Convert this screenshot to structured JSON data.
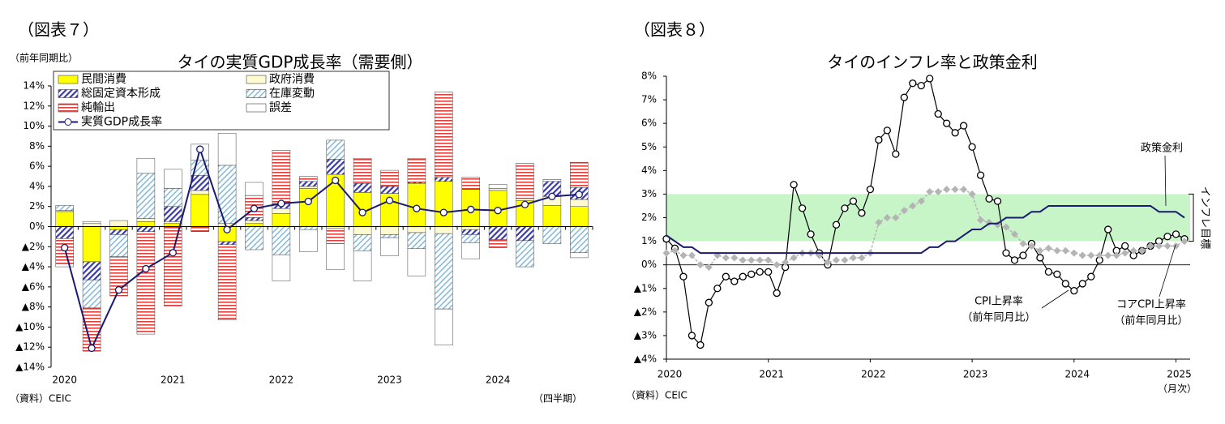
{
  "chart_data": [
    {
      "type": "bar",
      "stacked": true,
      "figure_label": "（図表７）",
      "title": "タイの実質GDP成長率（需要側）",
      "ylabel": "（前年同期比）",
      "xlabel": "（四半期）",
      "source": "（資料）CEIC",
      "categories": [
        "2020",
        null,
        null,
        null,
        "2021",
        null,
        null,
        null,
        "2022",
        null,
        null,
        null,
        "2023",
        null,
        null,
        null,
        "2024",
        null,
        null,
        null
      ],
      "series": [
        {
          "name": "民間消費",
          "color": "#ffff00",
          "pattern": "solid",
          "values": [
            1.5,
            -3.5,
            -0.3,
            0.5,
            0.3,
            3.2,
            -1.5,
            0.3,
            1.3,
            3.8,
            5.2,
            3.4,
            3.3,
            4.3,
            4.5,
            3.7,
            3.6,
            2.6,
            2.1,
            2.0
          ]
        },
        {
          "name": "政府消費",
          "color": "#fffbd0",
          "pattern": "solid",
          "values": [
            0.1,
            0.3,
            0.6,
            0.3,
            0.2,
            0.4,
            0.3,
            0.3,
            0.5,
            0.2,
            -0.2,
            -0.8,
            -0.8,
            -0.6,
            -0.7,
            -0.3,
            0.2,
            0.2,
            0.9,
            0.7
          ]
        },
        {
          "name": "総固定資本形成",
          "color": "#3a3aa8",
          "pattern": "diagonal",
          "values": [
            -1.2,
            -1.8,
            -0.5,
            -0.5,
            1.5,
            1.5,
            -0.3,
            0.3,
            0.5,
            0.5,
            1.5,
            0.9,
            0.7,
            0.1,
            0.4,
            -0.5,
            -1.3,
            -1.4,
            1.5,
            1.2
          ]
        },
        {
          "name": "在庫変動",
          "color": "#7ab4d8",
          "pattern": "fine-diagonal",
          "values": [
            0.5,
            -2.8,
            -2.2,
            4.5,
            1.8,
            1.5,
            5.8,
            -2.3,
            -2.8,
            -0.3,
            1.9,
            -1.6,
            -0.3,
            -1.6,
            -7.5,
            -0.8,
            0.0,
            -2.6,
            -1.7,
            -2.6
          ]
        },
        {
          "name": "純輸出",
          "color": "#e0403a",
          "pattern": "horizontal",
          "values": [
            -2.5,
            -4.3,
            -3.9,
            -10.2,
            -7.9,
            -0.5,
            -7.5,
            2.2,
            5.3,
            0.5,
            -1.5,
            2.5,
            1.6,
            2.4,
            8.5,
            1.2,
            -0.8,
            3.5,
            0.2,
            2.5
          ]
        },
        {
          "name": "誤差",
          "color": "#ffffff",
          "pattern": "solid",
          "values": [
            -0.3,
            0.2,
            0,
            1.5,
            1.9,
            1.6,
            3.2,
            1.3,
            -2.6,
            -2.2,
            -2.6,
            -3.0,
            -1.8,
            -2.7,
            -3.6,
            -1.6,
            0.4,
            0,
            0,
            -0.5
          ]
        },
        {
          "name": "実質GDP成長率",
          "color": "#1a1a6e",
          "type": "line",
          "marker": "circle",
          "values": [
            -2.1,
            -12.1,
            -6.3,
            -4.2,
            -2.6,
            7.7,
            -0.3,
            1.8,
            2.3,
            2.5,
            4.6,
            1.4,
            2.6,
            1.8,
            1.4,
            1.7,
            1.6,
            2.2,
            3.0,
            3.2
          ]
        }
      ],
      "ylim": [
        -14,
        14
      ],
      "yticks": [
        {
          "value": 14,
          "label": "14%"
        },
        {
          "value": 12,
          "label": "12%"
        },
        {
          "value": 10,
          "label": "10%"
        },
        {
          "value": 8,
          "label": "8%"
        },
        {
          "value": 6,
          "label": "6%"
        },
        {
          "value": 4,
          "label": "4%"
        },
        {
          "value": 2,
          "label": "2%"
        },
        {
          "value": 0,
          "label": "0%"
        },
        {
          "value": -2,
          "label": "▲2%"
        },
        {
          "value": -4,
          "label": "▲4%"
        },
        {
          "value": -6,
          "label": "▲6%"
        },
        {
          "value": -8,
          "label": "▲8%"
        },
        {
          "value": -10,
          "label": "▲10%"
        },
        {
          "value": -12,
          "label": "▲12%"
        },
        {
          "value": -14,
          "label": "▲14%"
        }
      ]
    },
    {
      "type": "line",
      "figure_label": "（図表８）",
      "title": "タイのインフレ率と政策金利",
      "x_unit": "（月次）",
      "source": "（資料）CEIC",
      "categories": [
        "2020",
        null,
        null,
        null,
        null,
        null,
        null,
        null,
        null,
        null,
        null,
        null,
        "2021",
        null,
        null,
        null,
        null,
        null,
        null,
        null,
        null,
        null,
        null,
        null,
        "2022",
        null,
        null,
        null,
        null,
        null,
        null,
        null,
        null,
        null,
        null,
        null,
        "2023",
        null,
        null,
        null,
        null,
        null,
        null,
        null,
        null,
        null,
        null,
        null,
        "2024",
        null,
        null,
        null,
        null,
        null,
        null,
        null,
        null,
        null,
        null,
        null,
        "2025",
        null
      ],
      "series": [
        {
          "name": "CPI上昇率",
          "color": "#000000",
          "marker": "circle",
          "values": [
            1.1,
            0.7,
            -0.5,
            -3.0,
            -3.4,
            -1.6,
            -1.0,
            -0.5,
            -0.7,
            -0.5,
            -0.4,
            -0.3,
            -0.3,
            -1.2,
            -0.1,
            3.4,
            2.4,
            1.3,
            0.5,
            0.0,
            1.7,
            2.4,
            2.7,
            2.2,
            3.2,
            5.3,
            5.7,
            4.7,
            7.1,
            7.7,
            7.6,
            7.9,
            6.4,
            6.0,
            5.6,
            5.9,
            5.0,
            3.8,
            2.8,
            2.7,
            0.5,
            0.2,
            0.4,
            0.9,
            0.3,
            -0.3,
            -0.4,
            -0.8,
            -1.1,
            -0.8,
            -0.5,
            0.2,
            1.5,
            0.6,
            0.8,
            0.4,
            0.6,
            0.8,
            1.0,
            1.2,
            1.3,
            1.1
          ]
        },
        {
          "name": "コアCPI上昇率",
          "color": "#b4b4b4",
          "marker": "diamond",
          "values": [
            0.5,
            0.6,
            0.4,
            0.4,
            0.0,
            -0.1,
            0.4,
            0.3,
            0.3,
            0.2,
            0.2,
            0.2,
            0.2,
            0.0,
            0.1,
            0.3,
            0.5,
            0.5,
            0.4,
            0.1,
            0.2,
            0.2,
            0.3,
            0.3,
            0.5,
            1.8,
            2.0,
            2.0,
            2.3,
            2.5,
            2.7,
            3.1,
            3.1,
            3.2,
            3.2,
            3.2,
            3.0,
            1.9,
            1.8,
            1.7,
            1.6,
            1.3,
            0.9,
            0.8,
            0.6,
            0.7,
            0.6,
            0.6,
            0.5,
            0.4,
            0.4,
            0.4,
            0.4,
            0.4,
            0.5,
            0.6,
            0.6,
            0.8,
            0.8,
            0.8,
            0.8,
            1.0
          ]
        },
        {
          "name": "政策金利",
          "color": "#1a1a6e",
          "marker": "none",
          "values": [
            1.25,
            1.0,
            0.75,
            0.75,
            0.5,
            0.5,
            0.5,
            0.5,
            0.5,
            0.5,
            0.5,
            0.5,
            0.5,
            0.5,
            0.5,
            0.5,
            0.5,
            0.5,
            0.5,
            0.5,
            0.5,
            0.5,
            0.5,
            0.5,
            0.5,
            0.5,
            0.5,
            0.5,
            0.5,
            0.5,
            0.5,
            0.75,
            0.75,
            1.0,
            1.0,
            1.25,
            1.5,
            1.5,
            1.75,
            1.75,
            2.0,
            2.0,
            2.0,
            2.25,
            2.25,
            2.5,
            2.5,
            2.5,
            2.5,
            2.5,
            2.5,
            2.5,
            2.5,
            2.5,
            2.5,
            2.5,
            2.5,
            2.5,
            2.25,
            2.25,
            2.25,
            2.0
          ]
        }
      ],
      "band": {
        "range": [
          1,
          3
        ],
        "color": "#c8f5c8",
        "label": "インフレ目標"
      },
      "annotations": [
        {
          "text": [
            "政策金利"
          ]
        },
        {
          "text": [
            "CPI上昇率",
            "（前年同月比）"
          ]
        },
        {
          "text": [
            "コアCPI上昇率",
            "（前年同月比）"
          ]
        }
      ],
      "ylim": [
        -4,
        8
      ],
      "yticks": [
        {
          "value": 8,
          "label": "8%"
        },
        {
          "value": 7,
          "label": "7%"
        },
        {
          "value": 6,
          "label": "6%"
        },
        {
          "value": 5,
          "label": "5%"
        },
        {
          "value": 4,
          "label": "4%"
        },
        {
          "value": 3,
          "label": "3%"
        },
        {
          "value": 2,
          "label": "2%"
        },
        {
          "value": 1,
          "label": "1%"
        },
        {
          "value": 0,
          "label": "0%"
        },
        {
          "value": -1,
          "label": "▲1%"
        },
        {
          "value": -2,
          "label": "▲2%"
        },
        {
          "value": -3,
          "label": "▲3%"
        },
        {
          "value": -4,
          "label": "▲4%"
        }
      ]
    }
  ]
}
